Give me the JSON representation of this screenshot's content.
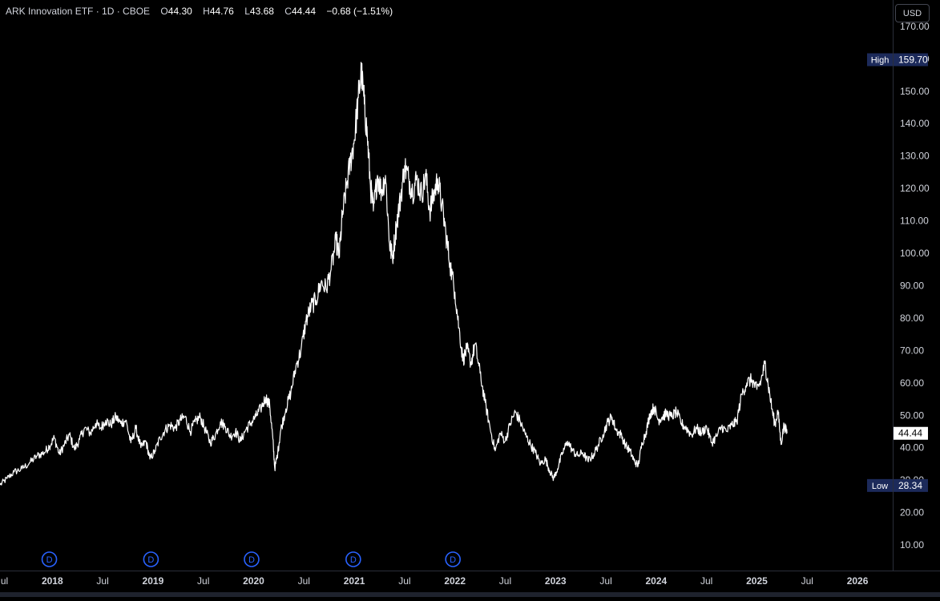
{
  "header": {
    "symbol": "ARK Innovation ETF · 1D · CBOE",
    "open_label": "O",
    "open": "44.30",
    "high_label": "H",
    "high": "44.76",
    "low_label": "L",
    "low": "43.68",
    "close_label": "C",
    "close": "44.44",
    "change": "−0.68 (−1.51%)"
  },
  "currency_button": "USD",
  "colors": {
    "background": "#000000",
    "line": "#ffffff",
    "axis_text": "#d1d4dc",
    "label_bg": "#1c2a5a",
    "dividend_circle": "#2962ff"
  },
  "chart_data": {
    "type": "line",
    "title": "",
    "ylim": [
      0,
      172
    ],
    "y_ticks": [
      10,
      20,
      30,
      40,
      50,
      60,
      70,
      80,
      90,
      100,
      110,
      120,
      130,
      140,
      150,
      160,
      170
    ],
    "y_tick_labels": [
      "10.00",
      "20.00",
      "30.00",
      "40.00",
      "50.00",
      "60.00",
      "70.00",
      "80.00",
      "90.00",
      "100.00",
      "110.00",
      "120.00",
      "130.00",
      "140.00",
      "150.00",
      "160.00",
      "170.00"
    ],
    "xlim": [
      2017.48,
      2026.35
    ],
    "x_ticks": [
      {
        "x": 2017.5,
        "label": "Jul"
      },
      {
        "x": 2018.0,
        "label": "2018"
      },
      {
        "x": 2018.5,
        "label": "Jul"
      },
      {
        "x": 2019.0,
        "label": "2019"
      },
      {
        "x": 2019.5,
        "label": "Jul"
      },
      {
        "x": 2020.0,
        "label": "2020"
      },
      {
        "x": 2020.5,
        "label": "Jul"
      },
      {
        "x": 2021.0,
        "label": "2021"
      },
      {
        "x": 2021.5,
        "label": "Jul"
      },
      {
        "x": 2022.0,
        "label": "2022"
      },
      {
        "x": 2022.5,
        "label": "Jul"
      },
      {
        "x": 2023.0,
        "label": "2023"
      },
      {
        "x": 2023.5,
        "label": "Jul"
      },
      {
        "x": 2024.0,
        "label": "2024"
      },
      {
        "x": 2024.5,
        "label": "Jul"
      },
      {
        "x": 2025.0,
        "label": "2025"
      },
      {
        "x": 2025.5,
        "label": "Jul"
      },
      {
        "x": 2026.0,
        "label": "2026"
      }
    ],
    "series": [
      {
        "values": [
          [
            2017.48,
            28.5
          ],
          [
            2017.55,
            30.5
          ],
          [
            2017.62,
            32.5
          ],
          [
            2017.7,
            33.5
          ],
          [
            2017.78,
            35.5
          ],
          [
            2017.85,
            37.5
          ],
          [
            2017.92,
            38.5
          ],
          [
            2017.97,
            40.5
          ],
          [
            2018.02,
            43.0
          ],
          [
            2018.07,
            38.0
          ],
          [
            2018.12,
            41.0
          ],
          [
            2018.17,
            44.0
          ],
          [
            2018.22,
            39.5
          ],
          [
            2018.27,
            42.5
          ],
          [
            2018.32,
            46.0
          ],
          [
            2018.38,
            44.5
          ],
          [
            2018.43,
            47.5
          ],
          [
            2018.48,
            46.0
          ],
          [
            2018.53,
            48.5
          ],
          [
            2018.58,
            47.0
          ],
          [
            2018.63,
            49.5
          ],
          [
            2018.68,
            47.5
          ],
          [
            2018.73,
            48.5
          ],
          [
            2018.78,
            41.5
          ],
          [
            2018.83,
            46.0
          ],
          [
            2018.88,
            40.0
          ],
          [
            2018.93,
            42.0
          ],
          [
            2018.97,
            36.5
          ],
          [
            2019.02,
            39.0
          ],
          [
            2019.07,
            43.0
          ],
          [
            2019.12,
            45.5
          ],
          [
            2019.17,
            47.0
          ],
          [
            2019.22,
            46.0
          ],
          [
            2019.27,
            48.5
          ],
          [
            2019.32,
            49.5
          ],
          [
            2019.37,
            45.0
          ],
          [
            2019.42,
            48.0
          ],
          [
            2019.47,
            49.5
          ],
          [
            2019.52,
            45.5
          ],
          [
            2019.57,
            41.5
          ],
          [
            2019.62,
            44.0
          ],
          [
            2019.67,
            48.0
          ],
          [
            2019.72,
            46.5
          ],
          [
            2019.77,
            43.5
          ],
          [
            2019.82,
            45.0
          ],
          [
            2019.87,
            42.0
          ],
          [
            2019.92,
            45.5
          ],
          [
            2019.97,
            47.5
          ],
          [
            2020.02,
            49.5
          ],
          [
            2020.07,
            52.0
          ],
          [
            2020.12,
            55.5
          ],
          [
            2020.16,
            53.0
          ],
          [
            2020.19,
            43.0
          ],
          [
            2020.21,
            33.5
          ],
          [
            2020.24,
            38.5
          ],
          [
            2020.27,
            45.5
          ],
          [
            2020.32,
            52.0
          ],
          [
            2020.37,
            57.0
          ],
          [
            2020.42,
            65.0
          ],
          [
            2020.47,
            70.0
          ],
          [
            2020.52,
            79.0
          ],
          [
            2020.57,
            83.5
          ],
          [
            2020.62,
            85.5
          ],
          [
            2020.67,
            91.0
          ],
          [
            2020.72,
            89.0
          ],
          [
            2020.77,
            95.0
          ],
          [
            2020.82,
            104.0
          ],
          [
            2020.85,
            99.0
          ],
          [
            2020.88,
            111.0
          ],
          [
            2020.92,
            120.0
          ],
          [
            2020.96,
            128.0
          ],
          [
            2021.0,
            135.0
          ],
          [
            2021.04,
            148.0
          ],
          [
            2021.07,
            156.0
          ],
          [
            2021.1,
            146.0
          ],
          [
            2021.13,
            136.0
          ],
          [
            2021.16,
            121.0
          ],
          [
            2021.19,
            113.0
          ],
          [
            2021.23,
            124.0
          ],
          [
            2021.27,
            119.0
          ],
          [
            2021.31,
            124.0
          ],
          [
            2021.35,
            103.0
          ],
          [
            2021.38,
            98.5
          ],
          [
            2021.42,
            109.0
          ],
          [
            2021.46,
            117.0
          ],
          [
            2021.5,
            127.0
          ],
          [
            2021.54,
            123.0
          ],
          [
            2021.58,
            119.0
          ],
          [
            2021.62,
            123.0
          ],
          [
            2021.67,
            118.0
          ],
          [
            2021.71,
            124.0
          ],
          [
            2021.75,
            113.0
          ],
          [
            2021.79,
            118.0
          ],
          [
            2021.83,
            123.0
          ],
          [
            2021.87,
            115.0
          ],
          [
            2021.91,
            106.0
          ],
          [
            2021.95,
            97.0
          ],
          [
            2022.0,
            88.0
          ],
          [
            2022.04,
            77.0
          ],
          [
            2022.08,
            67.0
          ],
          [
            2022.12,
            70.5
          ],
          [
            2022.16,
            66.0
          ],
          [
            2022.2,
            72.0
          ],
          [
            2022.25,
            63.0
          ],
          [
            2022.3,
            54.0
          ],
          [
            2022.35,
            46.0
          ],
          [
            2022.4,
            39.0
          ],
          [
            2022.45,
            44.5
          ],
          [
            2022.5,
            42.0
          ],
          [
            2022.55,
            47.5
          ],
          [
            2022.6,
            51.0
          ],
          [
            2022.65,
            48.0
          ],
          [
            2022.7,
            44.0
          ],
          [
            2022.75,
            41.0
          ],
          [
            2022.8,
            38.5
          ],
          [
            2022.85,
            35.0
          ],
          [
            2022.9,
            36.5
          ],
          [
            2022.94,
            33.0
          ],
          [
            2022.98,
            30.5
          ],
          [
            2023.02,
            33.5
          ],
          [
            2023.07,
            38.5
          ],
          [
            2023.12,
            42.0
          ],
          [
            2023.17,
            39.0
          ],
          [
            2023.22,
            37.5
          ],
          [
            2023.27,
            38.5
          ],
          [
            2023.32,
            36.0
          ],
          [
            2023.37,
            37.5
          ],
          [
            2023.42,
            40.5
          ],
          [
            2023.47,
            44.0
          ],
          [
            2023.52,
            48.0
          ],
          [
            2023.56,
            49.5
          ],
          [
            2023.6,
            45.5
          ],
          [
            2023.65,
            44.0
          ],
          [
            2023.7,
            40.5
          ],
          [
            2023.74,
            39.0
          ],
          [
            2023.78,
            36.0
          ],
          [
            2023.82,
            34.5
          ],
          [
            2023.86,
            41.5
          ],
          [
            2023.9,
            45.0
          ],
          [
            2023.94,
            50.5
          ],
          [
            2023.98,
            52.5
          ],
          [
            2024.02,
            48.5
          ],
          [
            2024.06,
            49.5
          ],
          [
            2024.1,
            50.5
          ],
          [
            2024.15,
            49.5
          ],
          [
            2024.2,
            51.0
          ],
          [
            2024.25,
            47.5
          ],
          [
            2024.3,
            46.0
          ],
          [
            2024.35,
            44.0
          ],
          [
            2024.4,
            46.0
          ],
          [
            2024.45,
            44.5
          ],
          [
            2024.5,
            46.5
          ],
          [
            2024.55,
            41.5
          ],
          [
            2024.6,
            43.5
          ],
          [
            2024.65,
            46.5
          ],
          [
            2024.7,
            45.0
          ],
          [
            2024.75,
            47.0
          ],
          [
            2024.8,
            48.0
          ],
          [
            2024.85,
            56.5
          ],
          [
            2024.9,
            60.0
          ],
          [
            2024.95,
            61.0
          ],
          [
            2025.0,
            58.0
          ],
          [
            2025.04,
            60.5
          ],
          [
            2025.08,
            66.0
          ],
          [
            2025.11,
            60.0
          ],
          [
            2025.15,
            52.0
          ],
          [
            2025.18,
            47.0
          ],
          [
            2025.21,
            51.5
          ],
          [
            2025.24,
            41.0
          ],
          [
            2025.27,
            47.0
          ],
          [
            2025.3,
            44.44
          ]
        ]
      }
    ],
    "current_price_label": "44.44",
    "high_marker": {
      "label": "High",
      "value": 159.7,
      "value_text": "159.70"
    },
    "low_marker": {
      "label": "Low",
      "value": 28.34,
      "value_text": "28.34"
    },
    "dividend_markers": [
      {
        "x": 2017.97,
        "label": "D"
      },
      {
        "x": 2018.98,
        "label": "D"
      },
      {
        "x": 2019.98,
        "label": "D"
      },
      {
        "x": 2020.99,
        "label": "D"
      },
      {
        "x": 2021.98,
        "label": "D"
      }
    ]
  }
}
